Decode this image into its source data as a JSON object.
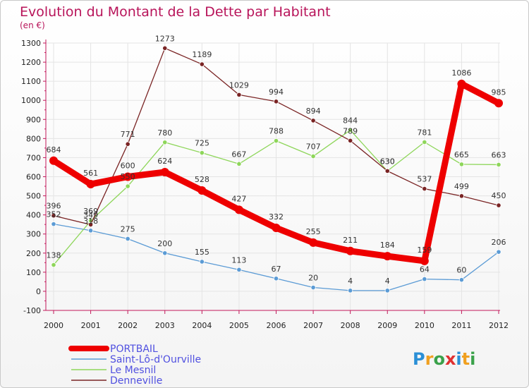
{
  "chart_data": {
    "type": "line",
    "title": "Evolution du Montant de la Dette par Habitant",
    "subtitle": "(en €)",
    "xlabel": "",
    "ylabel": "",
    "categories": [
      "2000",
      "2001",
      "2002",
      "2003",
      "2004",
      "2005",
      "2006",
      "2007",
      "2008",
      "2009",
      "2010",
      "2011",
      "2012"
    ],
    "ylim": [
      -100,
      1300
    ],
    "yticks": [
      "-100",
      "0",
      "100",
      "200",
      "300",
      "400",
      "500",
      "600",
      "700",
      "800",
      "900",
      "1000",
      "1100",
      "1200",
      "1300"
    ],
    "grid": true,
    "legend_position": "bottom-left",
    "series": [
      {
        "name": "PORTBAIL",
        "color": "#ee0000",
        "emphasis": true,
        "values": [
          684,
          561,
          600,
          624,
          528,
          427,
          332,
          255,
          211,
          184,
          159,
          1086,
          985
        ]
      },
      {
        "name": "Saint-Lô-d'Ourville",
        "color": "#5b9bd5",
        "emphasis": false,
        "values": [
          352,
          318,
          275,
          200,
          155,
          113,
          67,
          20,
          4,
          4,
          64,
          60,
          206
        ]
      },
      {
        "name": "Le Mesnil",
        "color": "#8ed65a",
        "emphasis": false,
        "values": [
          138,
          369,
          550,
          780,
          725,
          667,
          788,
          707,
          844,
          630,
          781,
          665,
          663
        ]
      },
      {
        "name": "Denneville",
        "color": "#7a2424",
        "emphasis": false,
        "values": [
          396,
          349,
          771,
          1273,
          1189,
          1029,
          994,
          894,
          789,
          630,
          537,
          499,
          450
        ]
      }
    ]
  },
  "brand": {
    "text": "Proxiti"
  }
}
